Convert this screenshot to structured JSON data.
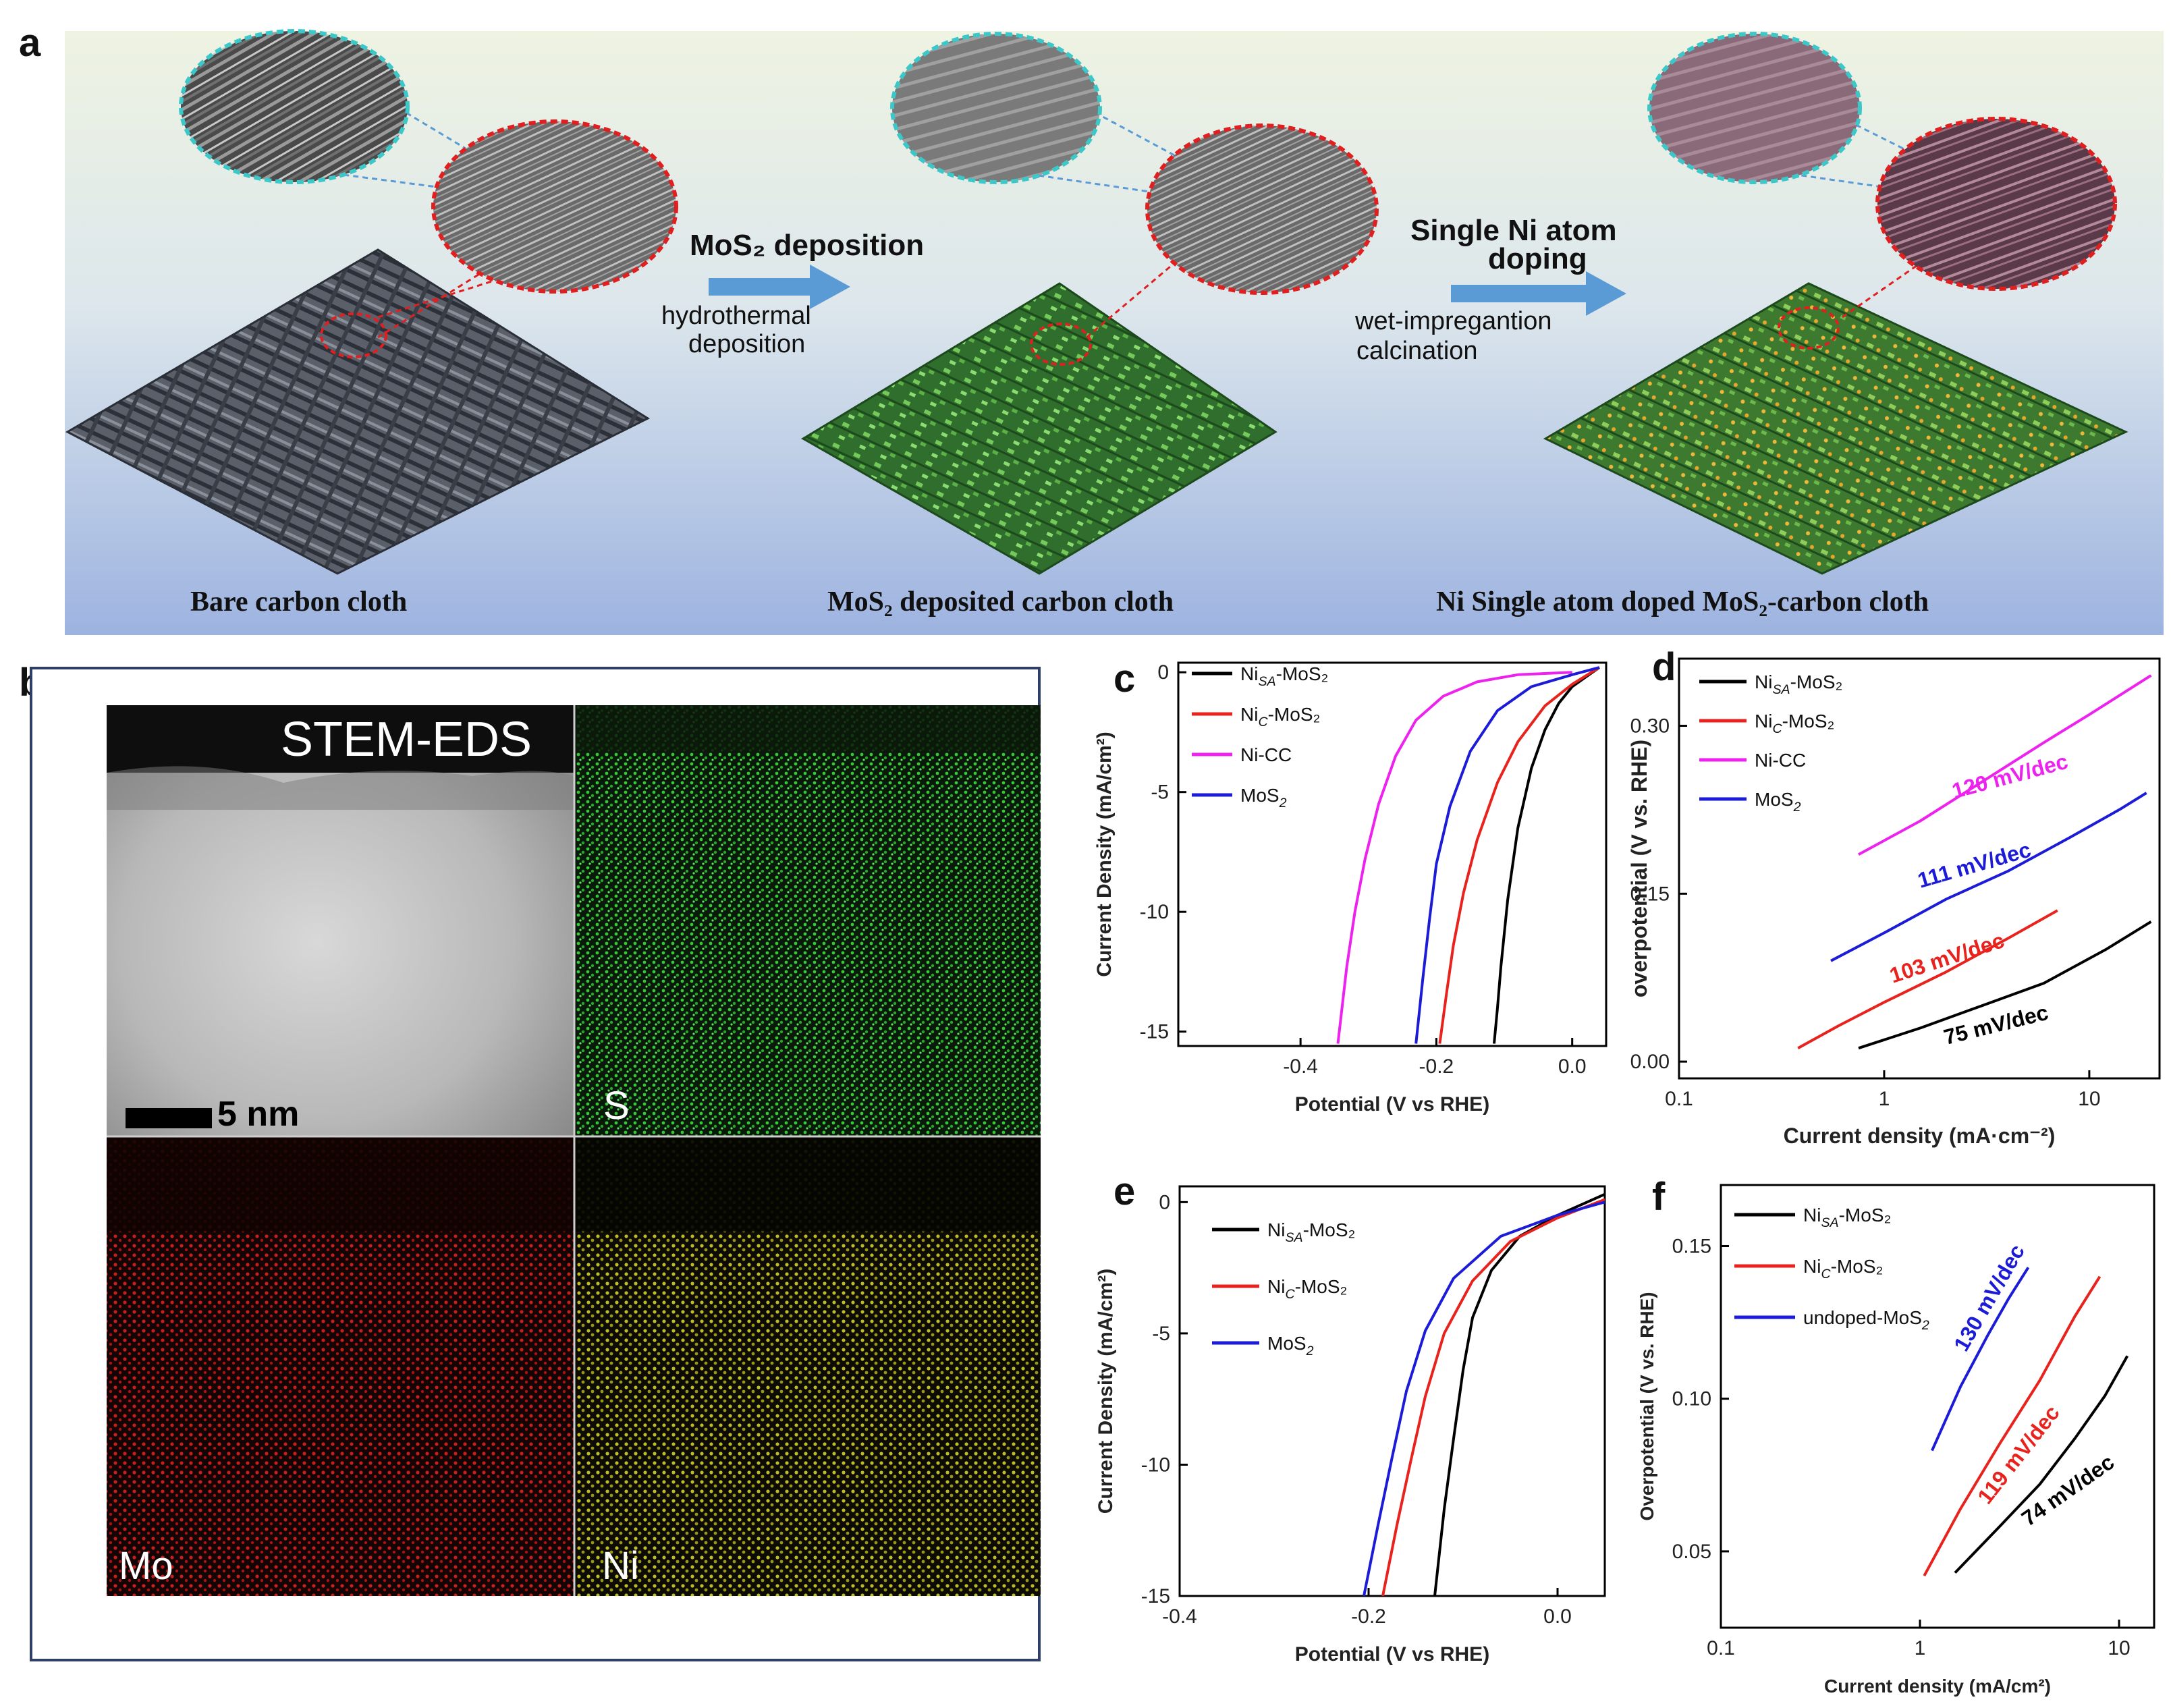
{
  "panel_letters": {
    "a": "a",
    "b": "b",
    "c": "c",
    "d": "d",
    "e": "e",
    "f": "f"
  },
  "schematic": {
    "step1_title": "MoS₂ deposition",
    "step1_sub1": "hydrothermal",
    "step1_sub2": "deposition",
    "step2_title1": "Single Ni atom",
    "step2_title2": "doping",
    "step2_sub1": "wet-impregantion",
    "step2_sub2": "calcination",
    "caption1": "Bare carbon cloth",
    "caption2": "MoS₂ deposited carbon cloth",
    "caption3": "Ni Single atom doped MoS₂-carbon cloth",
    "colors": {
      "sky_top": "#e8f0dc",
      "sky_bottom": "#9fb5e0",
      "arrow": "#5b9bd5",
      "cloth_bare": "#4a4f58",
      "cloth_mos2": "#3f8f3a",
      "cloth_ni": "#7a9a3a"
    }
  },
  "stem": {
    "title": "STEM-EDS",
    "scale_label": "5 nm",
    "maps": [
      "S",
      "Mo",
      "Ni"
    ],
    "colors": {
      "S": "#2fbf2f",
      "Mo": "#c41a1a",
      "Ni": "#b5b01a"
    }
  },
  "chart_data": [
    {
      "panel": "c",
      "type": "line",
      "xlabel": "Potential (V vs RHE)",
      "ylabel": "Current Density (mA/cm²)",
      "xlim": [
        -0.58,
        0.05
      ],
      "ylim": [
        -15.6,
        0.4
      ],
      "xticks": [
        -0.4,
        -0.2,
        0.0
      ],
      "xtick_labels": [
        "-0.4",
        "-0.2",
        "0.0"
      ],
      "yticks": [
        0,
        -5,
        -10,
        -15
      ],
      "ytick_labels": [
        "0",
        "-5",
        "-10",
        "-15"
      ],
      "legend": [
        {
          "main": "Ni",
          "sub": "SA",
          "rest": "-MoS₂",
          "color": "#000000"
        },
        {
          "main": "Ni",
          "sub": "C",
          "rest": "-MoS₂",
          "color": "#e8221c"
        },
        {
          "main": "Ni-CC",
          "sub": "",
          "rest": "",
          "color": "#ee22ee"
        },
        {
          "main": "MoS",
          "sub": "2",
          "rest": "",
          "color": "#1b1bd8"
        }
      ],
      "series": [
        {
          "color": "#000000",
          "x": [
            0.04,
            0.02,
            0.0,
            -0.02,
            -0.04,
            -0.06,
            -0.08,
            -0.095,
            -0.105,
            -0.11,
            -0.115
          ],
          "y": [
            0.2,
            -0.2,
            -0.6,
            -1.3,
            -2.4,
            -4.0,
            -6.5,
            -9.5,
            -12.3,
            -14.0,
            -15.5
          ]
        },
        {
          "color": "#e8221c",
          "x": [
            0.04,
            0.0,
            -0.04,
            -0.08,
            -0.11,
            -0.14,
            -0.16,
            -0.175,
            -0.185,
            -0.195
          ],
          "y": [
            0.2,
            -0.5,
            -1.4,
            -2.9,
            -4.6,
            -7.0,
            -9.2,
            -11.4,
            -13.4,
            -15.5
          ]
        },
        {
          "color": "#ee22ee",
          "x": [
            0.0,
            -0.08,
            -0.14,
            -0.19,
            -0.23,
            -0.26,
            -0.285,
            -0.305,
            -0.32,
            -0.332,
            -0.345
          ],
          "y": [
            0.0,
            -0.1,
            -0.4,
            -1.0,
            -2.0,
            -3.5,
            -5.5,
            -7.8,
            -10.0,
            -12.3,
            -15.5
          ]
        },
        {
          "color": "#1b1bd8",
          "x": [
            0.04,
            0.0,
            -0.06,
            -0.11,
            -0.15,
            -0.18,
            -0.2,
            -0.21,
            -0.22,
            -0.23
          ],
          "y": [
            0.2,
            -0.1,
            -0.6,
            -1.6,
            -3.3,
            -5.6,
            -8.0,
            -10.3,
            -12.8,
            -15.5
          ]
        }
      ]
    },
    {
      "panel": "d",
      "type": "line",
      "xlabel": "Current density (mA·cm⁻²)",
      "ylabel": "overpotential (V vs. RHE)",
      "xscale": "log",
      "xlim": [
        0.1,
        22
      ],
      "ylim": [
        -0.015,
        0.36
      ],
      "xticks": [
        0.1,
        1,
        10
      ],
      "xtick_labels": [
        "0.1",
        "1",
        "10"
      ],
      "yticks": [
        0.0,
        0.15,
        0.3
      ],
      "ytick_labels": [
        "0.00",
        "0.15",
        "0.30"
      ],
      "legend": [
        {
          "main": "Ni",
          "sub": "SA",
          "rest": "-MoS₂",
          "color": "#000000"
        },
        {
          "main": "Ni",
          "sub": "C",
          "rest": "-MoS₂",
          "color": "#e8221c"
        },
        {
          "main": "Ni-CC",
          "sub": "",
          "rest": "",
          "color": "#ee22ee"
        },
        {
          "main": "MoS",
          "sub": "2",
          "rest": "",
          "color": "#1b1bd8"
        }
      ],
      "annotations": [
        {
          "text": "120 mV/dec",
          "x": 2.2,
          "y": 0.235,
          "angle": -15,
          "color": "#ee22ee"
        },
        {
          "text": "111 mV/dec",
          "x": 1.5,
          "y": 0.155,
          "angle": -16,
          "color": "#1b1bd8"
        },
        {
          "text": "103 mV/dec",
          "x": 1.1,
          "y": 0.07,
          "angle": -18,
          "color": "#e8221c"
        },
        {
          "text": "75 mV/dec",
          "x": 2.0,
          "y": 0.015,
          "angle": -14,
          "color": "#000000"
        }
      ],
      "series": [
        {
          "color": "#ee22ee",
          "x": [
            0.75,
            1.5,
            3,
            6,
            10,
            20
          ],
          "y": [
            0.185,
            0.215,
            0.25,
            0.285,
            0.31,
            0.345
          ]
        },
        {
          "color": "#1b1bd8",
          "x": [
            0.55,
            1,
            2,
            4,
            8,
            14,
            19
          ],
          "y": [
            0.09,
            0.115,
            0.145,
            0.17,
            0.2,
            0.225,
            0.24
          ]
        },
        {
          "color": "#e8221c",
          "x": [
            0.38,
            0.6,
            1,
            2,
            4,
            7
          ],
          "y": [
            0.012,
            0.032,
            0.053,
            0.08,
            0.11,
            0.135
          ]
        },
        {
          "color": "#000000",
          "x": [
            0.75,
            1.5,
            3,
            6,
            12,
            20
          ],
          "y": [
            0.012,
            0.03,
            0.05,
            0.07,
            0.1,
            0.125
          ]
        }
      ]
    },
    {
      "panel": "e",
      "type": "line",
      "xlabel": "Potential (V vs RHE)",
      "ylabel": "Current Density (mA/cm²)",
      "xlim": [
        -0.4,
        0.05
      ],
      "ylim": [
        -15,
        0.6
      ],
      "xticks": [
        -0.4,
        -0.2,
        0.0
      ],
      "xtick_labels": [
        "-0.4",
        "-0.2",
        "0.0"
      ],
      "yticks": [
        0,
        -5,
        -10,
        -15
      ],
      "ytick_labels": [
        "0",
        "-5",
        "-10",
        "-15"
      ],
      "legend": [
        {
          "main": "Ni",
          "sub": "SA",
          "rest": "-MoS₂",
          "color": "#000000"
        },
        {
          "main": "Ni",
          "sub": "C",
          "rest": "-MoS₂",
          "color": "#e8221c"
        },
        {
          "main": "MoS",
          "sub": "2",
          "rest": "",
          "color": "#1b1bd8"
        }
      ],
      "series": [
        {
          "color": "#000000",
          "x": [
            0.05,
            0.0,
            -0.04,
            -0.07,
            -0.09,
            -0.1,
            -0.11,
            -0.12,
            -0.13
          ],
          "y": [
            0.3,
            -0.5,
            -1.3,
            -2.6,
            -4.4,
            -6.4,
            -9.0,
            -11.7,
            -15.0
          ]
        },
        {
          "color": "#e8221c",
          "x": [
            0.05,
            0.0,
            -0.05,
            -0.09,
            -0.12,
            -0.14,
            -0.155,
            -0.17,
            -0.185
          ],
          "y": [
            0.1,
            -0.6,
            -1.5,
            -3.0,
            -5.0,
            -7.4,
            -9.8,
            -12.3,
            -15.0
          ]
        },
        {
          "color": "#1b1bd8",
          "x": [
            0.05,
            0.0,
            -0.06,
            -0.11,
            -0.14,
            -0.16,
            -0.175,
            -0.19,
            -0.205
          ],
          "y": [
            0.0,
            -0.5,
            -1.3,
            -2.9,
            -4.9,
            -7.2,
            -9.7,
            -12.3,
            -15.0
          ]
        }
      ]
    },
    {
      "panel": "f",
      "type": "line",
      "xlabel": "Current density (mA/cm²)",
      "ylabel": "Overpotential (V vs. RHE)",
      "xscale": "log",
      "xlim": [
        0.1,
        15
      ],
      "ylim": [
        0.025,
        0.17
      ],
      "xticks": [
        0.1,
        1,
        10
      ],
      "xtick_labels": [
        "0.1",
        "1",
        "10"
      ],
      "yticks": [
        0.05,
        0.1,
        0.15
      ],
      "ytick_labels": [
        "0.05",
        "0.10",
        "0.15"
      ],
      "legend": [
        {
          "main": "Ni",
          "sub": "SA",
          "rest": "-MoS₂",
          "color": "#000000"
        },
        {
          "main": " Ni",
          "sub": "C",
          "rest": "-MoS₂",
          "color": "#e8221c"
        },
        {
          "main": "undoped-MoS",
          "sub": "2",
          "rest": "",
          "color": "#1b1bd8"
        }
      ],
      "annotations": [
        {
          "text": "130 mV/dec",
          "x": 1.7,
          "y": 0.115,
          "angle": -60,
          "color": "#1b1bd8"
        },
        {
          "text": "119 mV/dec",
          "x": 2.2,
          "y": 0.065,
          "angle": -52,
          "color": "#e8221c"
        },
        {
          "text": "74 mV/dec",
          "x": 3.5,
          "y": 0.058,
          "angle": -35,
          "color": "#000000"
        }
      ],
      "series": [
        {
          "color": "#1b1bd8",
          "x": [
            1.15,
            1.6,
            2.2,
            2.8,
            3.5
          ],
          "y": [
            0.083,
            0.104,
            0.121,
            0.133,
            0.143
          ]
        },
        {
          "color": "#e8221c",
          "x": [
            1.05,
            1.6,
            2.5,
            4,
            6,
            8
          ],
          "y": [
            0.042,
            0.064,
            0.085,
            0.106,
            0.127,
            0.14
          ]
        },
        {
          "color": "#000000",
          "x": [
            1.5,
            2.5,
            4,
            6,
            8.5,
            11
          ],
          "y": [
            0.043,
            0.058,
            0.072,
            0.087,
            0.101,
            0.114
          ]
        }
      ]
    }
  ]
}
